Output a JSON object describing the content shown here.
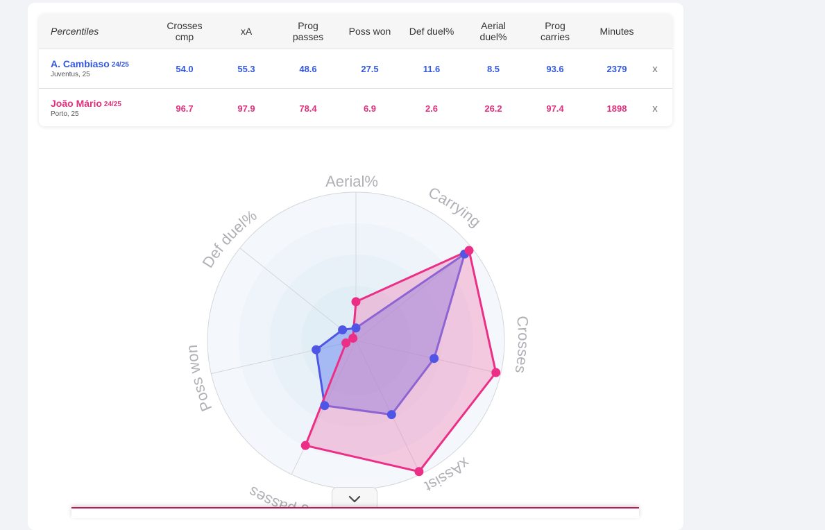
{
  "table": {
    "header_first": "Percentiles",
    "columns": [
      "Crosses\ncmp",
      "xA",
      "Prog\npasses",
      "Poss won",
      "Def duel%",
      "Aerial\nduel%",
      "Prog\ncarries",
      "Minutes"
    ],
    "remove_label": "x"
  },
  "players": [
    {
      "name": "A. Cambiaso",
      "season": "24/25",
      "club_age": "Juventus, 25",
      "values": [
        "54.0",
        "55.3",
        "48.6",
        "27.5",
        "11.6",
        "8.5",
        "93.6",
        "2379"
      ],
      "color": "#3358e0"
    },
    {
      "name": "João Mário",
      "season": "24/25",
      "club_age": "Porto, 25",
      "values": [
        "96.7",
        "97.9",
        "78.4",
        "6.9",
        "2.6",
        "26.2",
        "97.4",
        "1898"
      ],
      "color": "#e0307f"
    }
  ],
  "radar": {
    "axes": [
      "Aerial%",
      "Carrying",
      "Crosses",
      "xAssist",
      "Prog passes",
      "Poss won",
      "Def duel%"
    ],
    "series": [
      {
        "values": [
          8.5,
          93.6,
          54.0,
          55.3,
          48.6,
          27.5,
          11.6
        ],
        "stroke": "#4f56e6",
        "fill": "#5a78f0"
      },
      {
        "values": [
          26.2,
          97.4,
          96.7,
          97.9,
          78.4,
          6.9,
          2.6
        ],
        "stroke": "#ec2f86",
        "fill": "#f17bb4"
      }
    ],
    "range": [
      0,
      100
    ],
    "icons": {
      "toggle": "chevron-down-icon"
    }
  }
}
